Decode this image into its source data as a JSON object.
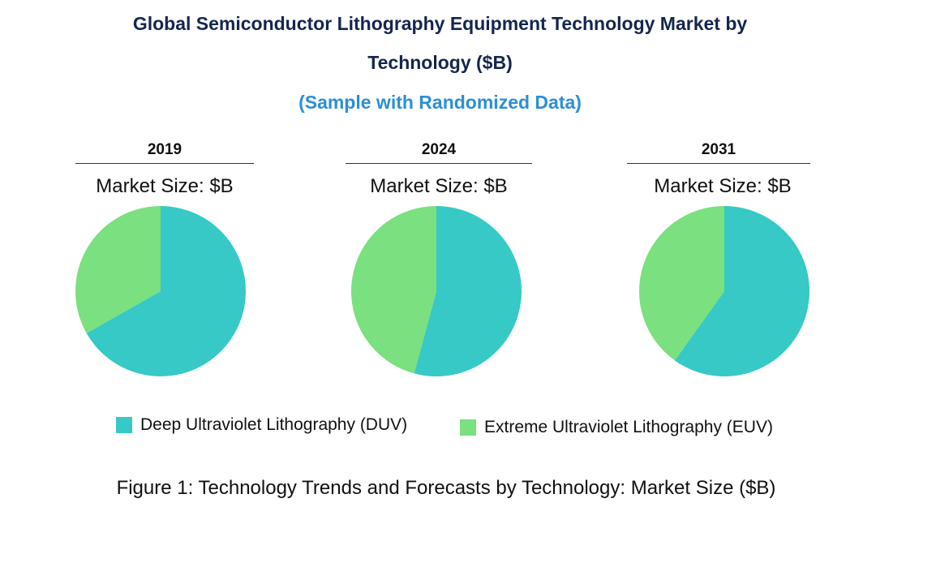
{
  "title_line1": "Global Semiconductor Lithography Equipment Technology Market by",
  "title_line2": "Technology ($B)",
  "subtitle": "(Sample with Randomized Data)",
  "caption": "Figure 1: Technology Trends and Forecasts by Technology: Market Size ($B)",
  "chart_data": {
    "type": "pie",
    "series_names": [
      "Deep Ultraviolet Lithography (DUV)",
      "Extreme Ultraviolet Lithography (EUV)"
    ],
    "colors": [
      "#36c9c6",
      "#7be07f"
    ],
    "legend_position": "bottom",
    "pies": [
      {
        "year": "2019",
        "label": "Market Size: $B",
        "values": [
          66.8,
          33.2
        ]
      },
      {
        "year": "2024",
        "label": "Market Size: $B",
        "values": [
          54.2,
          45.8
        ]
      },
      {
        "year": "2031",
        "label": "Market Size: $B",
        "values": [
          59.9,
          40.1
        ]
      }
    ]
  }
}
